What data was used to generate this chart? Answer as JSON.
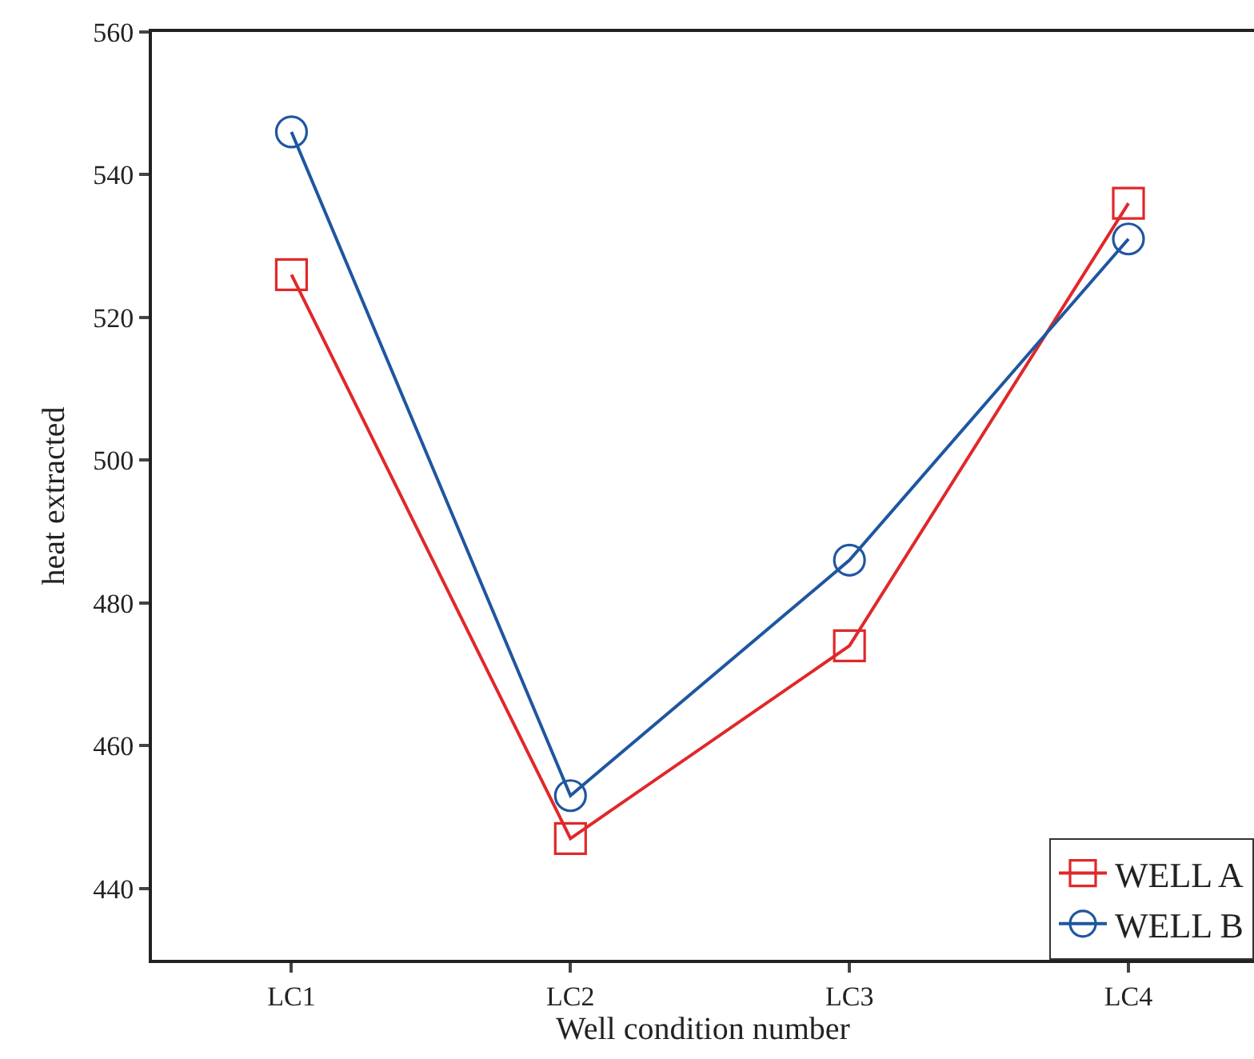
{
  "chart_data": {
    "type": "line",
    "xlabel": "Well condition number",
    "ylabel": "heat extracted",
    "categories": [
      "LC1",
      "LC2",
      "LC3",
      "LC4"
    ],
    "series": [
      {
        "name": "WELL A",
        "color": "#e0282a",
        "values": [
          526,
          447,
          474,
          536
        ],
        "marker": "square"
      },
      {
        "name": "WELL B",
        "color": "#1f56a0",
        "values": [
          546,
          453,
          486,
          531
        ],
        "marker": "circle"
      }
    ],
    "ylim": [
      430,
      560
    ],
    "yticks": [
      440,
      460,
      480,
      500,
      520,
      540,
      560
    ],
    "grid": false,
    "legend": "bottom right",
    "line_style": "solid"
  }
}
